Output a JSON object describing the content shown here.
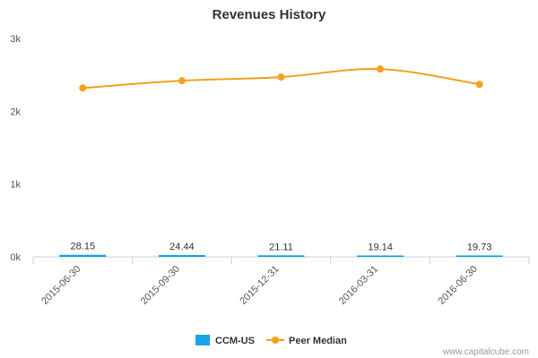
{
  "chart_data": {
    "type": "bar",
    "title": "Revenues History",
    "xlabel": "",
    "ylabel": "",
    "categories": [
      "2015-06-30",
      "2015-09-30",
      "2015-12-31",
      "2016-03-31",
      "2016-06-30"
    ],
    "ylim": [
      0,
      3000
    ],
    "yticks": [
      0,
      1000,
      2000,
      3000
    ],
    "ytick_labels": [
      "0k",
      "1k",
      "2k",
      "3k"
    ],
    "grid": false,
    "legend_position": "bottom",
    "series": [
      {
        "name": "CCM-US",
        "type": "bar",
        "color": "#1aa3e8",
        "values": [
          28.15,
          24.44,
          21.11,
          19.14,
          19.73
        ],
        "data_labels": [
          "28.15",
          "24.44",
          "21.11",
          "19.14",
          "19.73"
        ]
      },
      {
        "name": "Peer Median",
        "type": "line",
        "color": "#f4a11c",
        "values": [
          2320,
          2420,
          2470,
          2580,
          2370
        ]
      }
    ]
  },
  "credit": "www.capitalcube.com"
}
